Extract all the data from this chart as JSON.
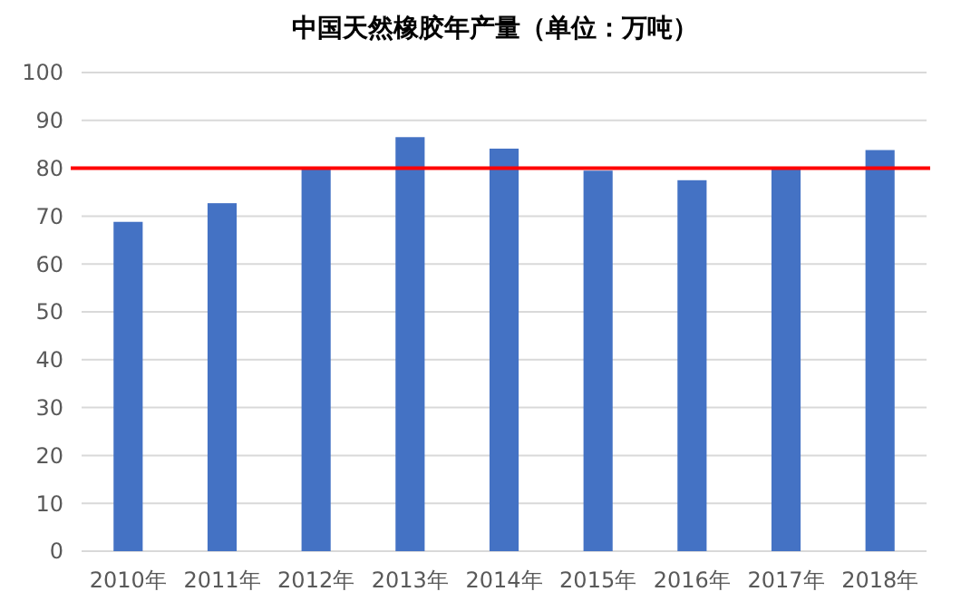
{
  "chart_data": {
    "type": "bar",
    "title": "中国天然橡胶年产量（单位：万吨）",
    "categories": [
      "2010年",
      "2011年",
      "2012年",
      "2013年",
      "2014年",
      "2015年",
      "2016年",
      "2017年",
      "2018年"
    ],
    "values": [
      68.8,
      72.7,
      80.2,
      86.5,
      84.1,
      79.5,
      77.5,
      80.1,
      83.8
    ],
    "color": "#4472c4",
    "ylim": [
      0,
      100
    ],
    "yticks": [
      0,
      10,
      20,
      30,
      40,
      50,
      60,
      70,
      80,
      90,
      100
    ],
    "grid": "y",
    "ref_lines": [
      {
        "axis": "y",
        "value": 80,
        "color": "#ff0000"
      }
    ]
  }
}
